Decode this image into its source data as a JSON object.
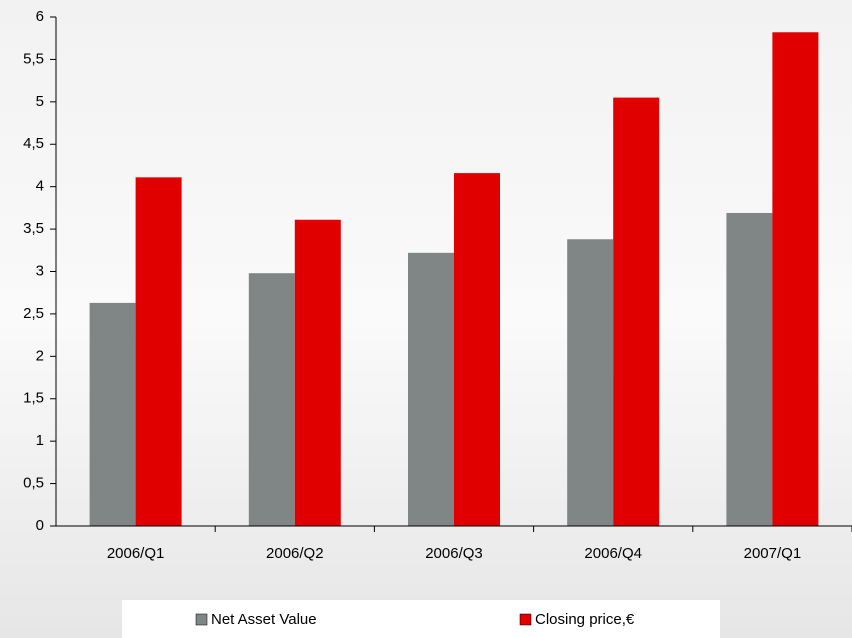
{
  "chart_data": {
    "type": "bar",
    "categories": [
      "2006/Q1",
      "2006/Q2",
      "2006/Q3",
      "2006/Q4",
      "2007/Q1"
    ],
    "series": [
      {
        "name": "Net Asset Value",
        "color": "#7f8685",
        "values": [
          2.63,
          2.98,
          3.22,
          3.38,
          3.69
        ]
      },
      {
        "name": "Closing price,€",
        "color": "#e00000",
        "values": [
          4.11,
          3.61,
          4.16,
          5.05,
          5.82
        ]
      }
    ],
    "ylim": [
      0,
      6
    ],
    "yticks": [
      0,
      {
        "value": 0.5,
        "label": "0,5"
      },
      1,
      {
        "value": 1.5,
        "label": "1,5"
      },
      2,
      {
        "value": 2.5,
        "label": "2,5"
      },
      3,
      {
        "value": 3.5,
        "label": "3,5"
      },
      4,
      {
        "value": 4.5,
        "label": "4,5"
      },
      5,
      {
        "value": 5.5,
        "label": "5,5"
      },
      6
    ],
    "legend": "bottom"
  }
}
